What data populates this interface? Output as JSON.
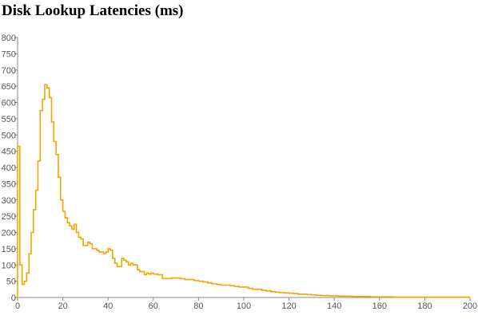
{
  "chart_data": {
    "type": "line",
    "step": true,
    "title": "Disk Lookup Latencies (ms)",
    "xlabel": "",
    "ylabel": "",
    "xlim": [
      0,
      200
    ],
    "ylim": [
      0,
      800
    ],
    "x_ticks": [
      0,
      20,
      40,
      60,
      80,
      100,
      120,
      140,
      160,
      180,
      200
    ],
    "y_ticks": [
      0,
      50,
      100,
      150,
      200,
      250,
      300,
      350,
      400,
      450,
      500,
      550,
      600,
      650,
      700,
      750,
      800
    ],
    "grid": false,
    "legend": "none",
    "series": [
      {
        "color": "#f5a300",
        "points": [
          [
            0,
            465
          ],
          [
            1,
            100
          ],
          [
            2,
            40
          ],
          [
            3,
            50
          ],
          [
            4,
            75
          ],
          [
            5,
            135
          ],
          [
            6,
            200
          ],
          [
            7,
            270
          ],
          [
            8,
            330
          ],
          [
            9,
            420
          ],
          [
            10,
            575
          ],
          [
            11,
            610
          ],
          [
            12,
            655
          ],
          [
            13,
            645
          ],
          [
            14,
            615
          ],
          [
            15,
            540
          ],
          [
            16,
            480
          ],
          [
            17,
            440
          ],
          [
            18,
            370
          ],
          [
            19,
            300
          ],
          [
            20,
            265
          ],
          [
            21,
            245
          ],
          [
            22,
            230
          ],
          [
            23,
            220
          ],
          [
            24,
            210
          ],
          [
            25,
            225
          ],
          [
            26,
            200
          ],
          [
            27,
            185
          ],
          [
            28,
            180
          ],
          [
            29,
            160
          ],
          [
            30,
            160
          ],
          [
            31,
            170
          ],
          [
            32,
            165
          ],
          [
            33,
            150
          ],
          [
            34,
            150
          ],
          [
            35,
            145
          ],
          [
            36,
            140
          ],
          [
            37,
            140
          ],
          [
            38,
            135
          ],
          [
            39,
            140
          ],
          [
            40,
            150
          ],
          [
            41,
            145
          ],
          [
            42,
            120
          ],
          [
            43,
            105
          ],
          [
            44,
            95
          ],
          [
            45,
            95
          ],
          [
            46,
            120
          ],
          [
            47,
            115
          ],
          [
            48,
            110
          ],
          [
            49,
            100
          ],
          [
            50,
            105
          ],
          [
            51,
            100
          ],
          [
            52,
            100
          ],
          [
            53,
            85
          ],
          [
            54,
            80
          ],
          [
            55,
            80
          ],
          [
            56,
            70
          ],
          [
            57,
            75
          ],
          [
            58,
            72
          ],
          [
            59,
            75
          ],
          [
            60,
            72
          ],
          [
            62,
            70
          ],
          [
            64,
            58
          ],
          [
            66,
            58
          ],
          [
            68,
            60
          ],
          [
            70,
            60
          ],
          [
            72,
            58
          ],
          [
            74,
            55
          ],
          [
            76,
            55
          ],
          [
            78,
            52
          ],
          [
            80,
            50
          ],
          [
            82,
            48
          ],
          [
            84,
            45
          ],
          [
            86,
            42
          ],
          [
            88,
            40
          ],
          [
            90,
            38
          ],
          [
            92,
            38
          ],
          [
            94,
            36
          ],
          [
            96,
            34
          ],
          [
            98,
            32
          ],
          [
            100,
            32
          ],
          [
            102,
            28
          ],
          [
            104,
            25
          ],
          [
            106,
            25
          ],
          [
            108,
            22
          ],
          [
            110,
            20
          ],
          [
            112,
            18
          ],
          [
            114,
            16
          ],
          [
            116,
            15
          ],
          [
            118,
            14
          ],
          [
            120,
            13
          ],
          [
            122,
            12
          ],
          [
            124,
            10
          ],
          [
            126,
            10
          ],
          [
            128,
            9
          ],
          [
            130,
            8
          ],
          [
            132,
            7
          ],
          [
            134,
            6
          ],
          [
            136,
            6
          ],
          [
            138,
            5
          ],
          [
            140,
            5
          ],
          [
            142,
            4
          ],
          [
            144,
            4
          ],
          [
            146,
            4
          ],
          [
            148,
            3
          ],
          [
            150,
            3
          ],
          [
            152,
            3
          ],
          [
            154,
            3
          ],
          [
            156,
            2
          ],
          [
            158,
            2
          ],
          [
            160,
            2
          ],
          [
            162,
            2
          ],
          [
            164,
            2
          ],
          [
            166,
            1
          ],
          [
            168,
            1
          ],
          [
            170,
            1
          ],
          [
            172,
            1
          ],
          [
            174,
            1
          ],
          [
            176,
            1
          ],
          [
            178,
            1
          ],
          [
            180,
            1
          ],
          [
            182,
            1
          ],
          [
            184,
            1
          ],
          [
            186,
            1
          ],
          [
            188,
            1
          ],
          [
            190,
            1
          ],
          [
            192,
            1
          ],
          [
            194,
            1
          ],
          [
            196,
            1
          ],
          [
            198,
            1
          ],
          [
            200,
            1
          ]
        ]
      }
    ]
  }
}
